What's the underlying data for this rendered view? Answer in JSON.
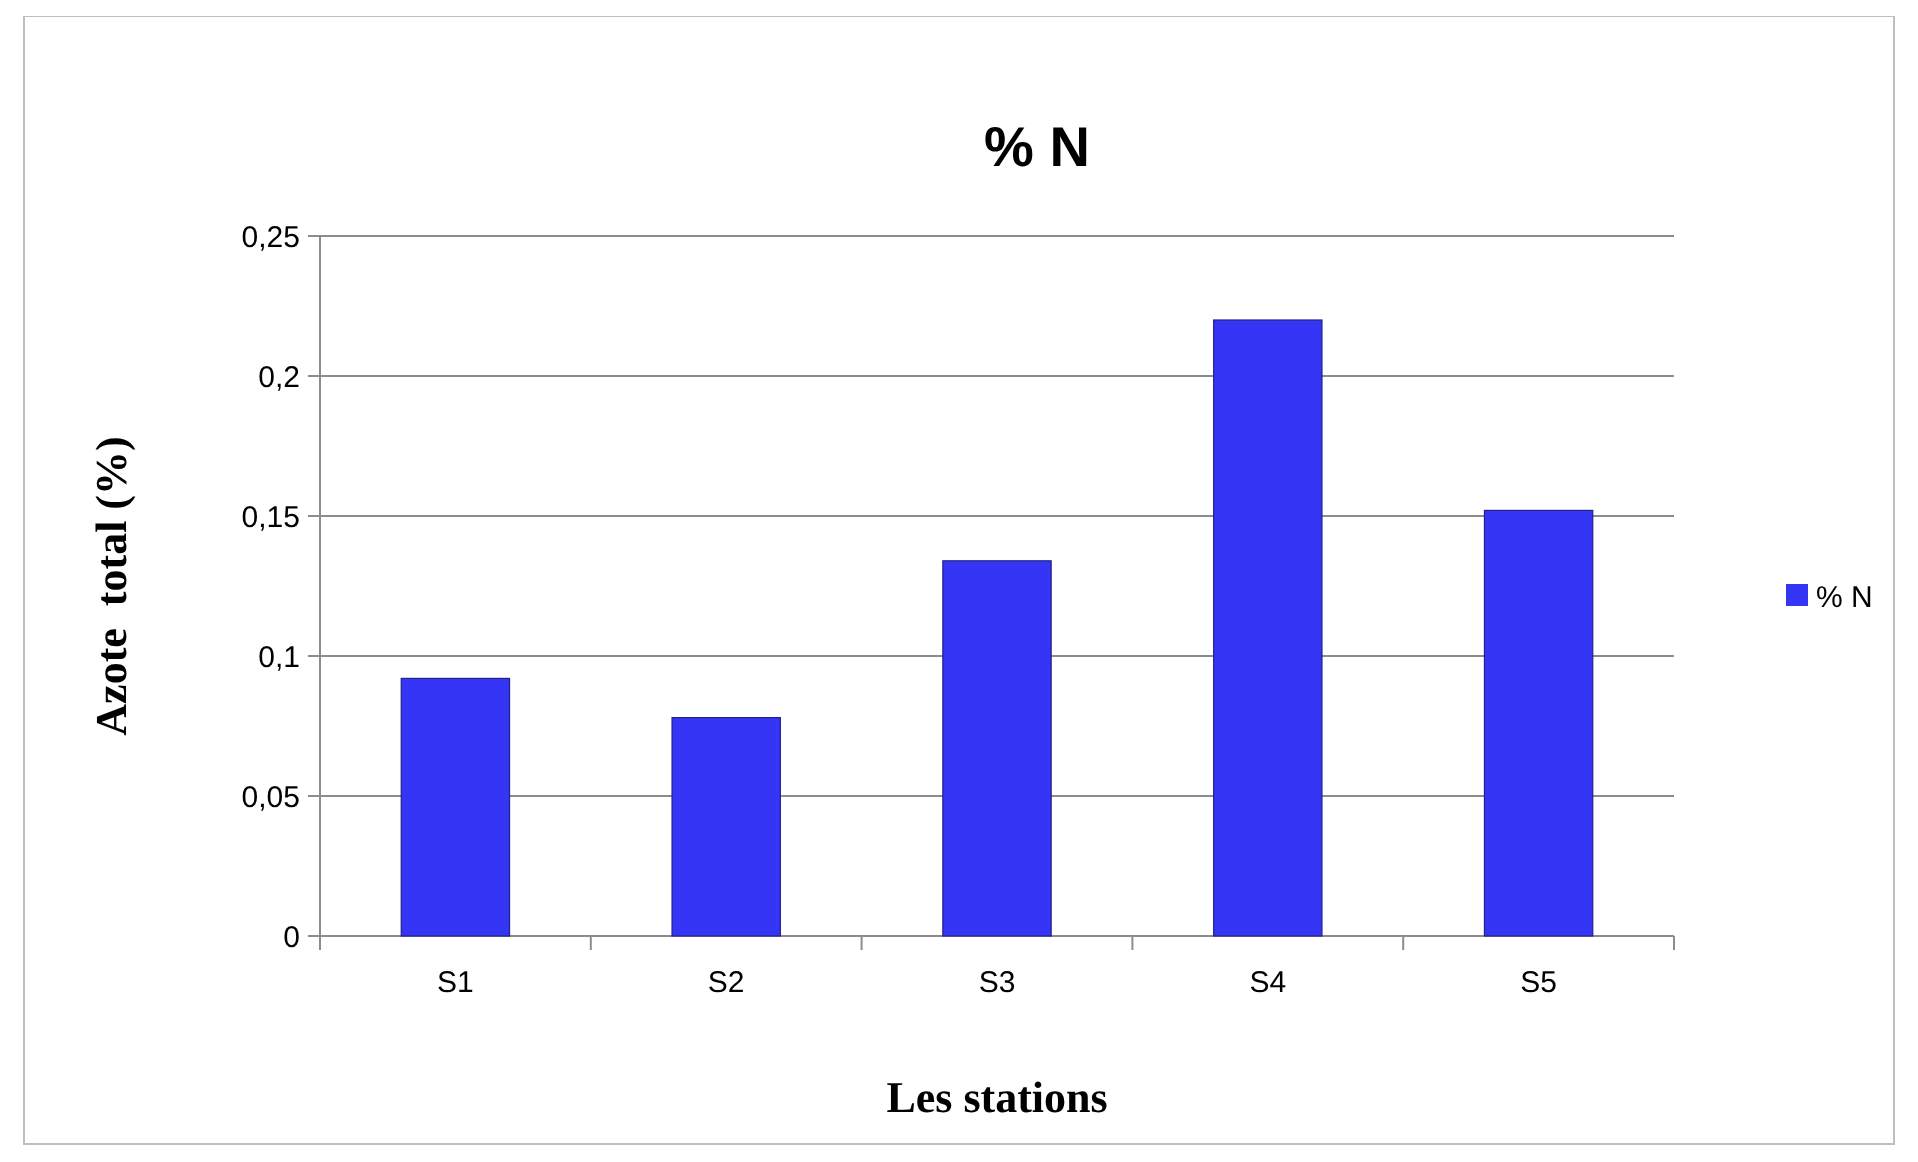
{
  "chart_data": {
    "type": "bar",
    "title": "% N",
    "xlabel": "Les stations",
    "ylabel": "Azote  total (%)",
    "categories": [
      "S1",
      "S2",
      "S3",
      "S4",
      "S5"
    ],
    "series": [
      {
        "name": "% N",
        "color": "#3535f5",
        "values": [
          0.092,
          0.078,
          0.134,
          0.22,
          0.152
        ]
      }
    ],
    "ylim": [
      0,
      0.25
    ],
    "yticks": [
      0,
      {
        "value": 0.05,
        "label": "0,05"
      },
      {
        "value": 0.1,
        "label": "0,1"
      },
      {
        "value": 0.15,
        "label": "0,15"
      },
      {
        "value": 0.2,
        "label": "0,2"
      },
      {
        "value": 0.25,
        "label": "0,25"
      }
    ],
    "grid": "y",
    "legend": "right"
  }
}
